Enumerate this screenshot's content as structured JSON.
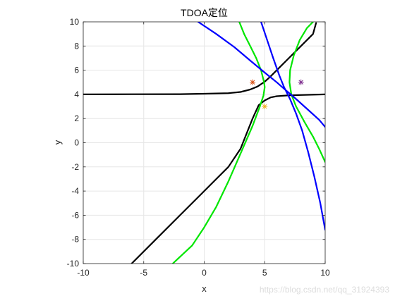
{
  "chart_data": {
    "type": "line",
    "title": "TDOA定位",
    "xlabel": "x",
    "ylabel": "y",
    "xlim": [
      -10,
      10
    ],
    "ylim": [
      -10,
      10
    ],
    "xticks": [
      -10,
      -5,
      0,
      5,
      10
    ],
    "yticks": [
      -10,
      -8,
      -6,
      -4,
      -2,
      0,
      2,
      4,
      6,
      8,
      10
    ],
    "grid": true,
    "aspect": "equal",
    "series": [
      {
        "color": "#000000",
        "points": [
          [
            -10,
            4.0
          ],
          [
            -6,
            4.01
          ],
          [
            -2,
            4.02
          ],
          [
            0,
            4.05
          ],
          [
            2,
            4.1
          ],
          [
            3,
            4.2
          ],
          [
            3.8,
            4.4
          ],
          [
            4.4,
            4.65
          ],
          [
            5,
            5.05
          ],
          [
            5.5,
            5.5
          ],
          [
            6.2,
            6.2
          ],
          [
            7,
            7.0
          ],
          [
            8,
            8.0
          ],
          [
            9,
            9.0
          ],
          [
            9.25,
            9.9
          ]
        ]
      },
      {
        "color": "#000000",
        "points": [
          [
            -6,
            -10
          ],
          [
            -4,
            -8
          ],
          [
            -2,
            -6
          ],
          [
            0,
            -4
          ],
          [
            1,
            -3
          ],
          [
            2,
            -2
          ],
          [
            3,
            -0.5
          ],
          [
            4,
            2.0
          ],
          [
            4.5,
            3.1
          ],
          [
            5,
            3.5
          ],
          [
            5.5,
            3.75
          ],
          [
            6,
            3.85
          ],
          [
            7,
            3.92
          ],
          [
            8,
            3.95
          ],
          [
            10,
            4.0
          ]
        ]
      },
      {
        "color": "#00e600",
        "points": [
          [
            2.9,
            10
          ],
          [
            3.3,
            9.0
          ],
          [
            3.8,
            8.0
          ],
          [
            4.3,
            7.0
          ],
          [
            4.7,
            6.0
          ],
          [
            4.95,
            5.0
          ],
          [
            5.0,
            4.6
          ],
          [
            4.9,
            3.9
          ],
          [
            4.6,
            3.0
          ],
          [
            4.0,
            1.4
          ],
          [
            3.0,
            -0.9
          ],
          [
            2.0,
            -3.2
          ],
          [
            1.0,
            -5.3
          ],
          [
            0,
            -7.0
          ],
          [
            -1.0,
            -8.5
          ],
          [
            -2.6,
            -10
          ]
        ]
      },
      {
        "color": "#00e600",
        "points": [
          [
            9.0,
            10
          ],
          [
            8.5,
            9.5
          ],
          [
            7.9,
            8.5
          ],
          [
            7.4,
            7.2
          ],
          [
            7.1,
            6.0
          ],
          [
            7.05,
            5.0
          ],
          [
            7.2,
            4.0
          ],
          [
            7.6,
            3.0
          ],
          [
            8.3,
            1.7
          ],
          [
            9.0,
            0.5
          ],
          [
            9.5,
            -0.5
          ],
          [
            10,
            -1.6
          ]
        ]
      },
      {
        "color": "#0000ff",
        "points": [
          [
            -0.5,
            10
          ],
          [
            1,
            9.0
          ],
          [
            2.5,
            7.9
          ],
          [
            3.8,
            6.8
          ],
          [
            5.0,
            5.8
          ],
          [
            6.0,
            5.0
          ],
          [
            6.8,
            4.3
          ],
          [
            7.5,
            3.7
          ],
          [
            8.5,
            2.8
          ],
          [
            9.5,
            1.9
          ],
          [
            10,
            1.3
          ]
        ]
      },
      {
        "color": "#0000ff",
        "points": [
          [
            4.7,
            10
          ],
          [
            5.2,
            8.5
          ],
          [
            5.7,
            7.0
          ],
          [
            6.2,
            5.6
          ],
          [
            6.6,
            4.6
          ],
          [
            7.1,
            3.6
          ],
          [
            7.6,
            2.4
          ],
          [
            8.1,
            1.0
          ],
          [
            8.6,
            -0.8
          ],
          [
            9.1,
            -2.8
          ],
          [
            9.6,
            -5.0
          ],
          [
            10,
            -7.2
          ]
        ]
      }
    ],
    "markers": [
      {
        "x": 4,
        "y": 5,
        "symbol": "*",
        "color": "#d95319"
      },
      {
        "x": 8,
        "y": 5,
        "symbol": "*",
        "color": "#7e2f8e"
      },
      {
        "x": 5,
        "y": 3,
        "symbol": "*",
        "color": "#edb120"
      }
    ]
  },
  "watermark": "https://blog.csdn.net/qq_31924393"
}
